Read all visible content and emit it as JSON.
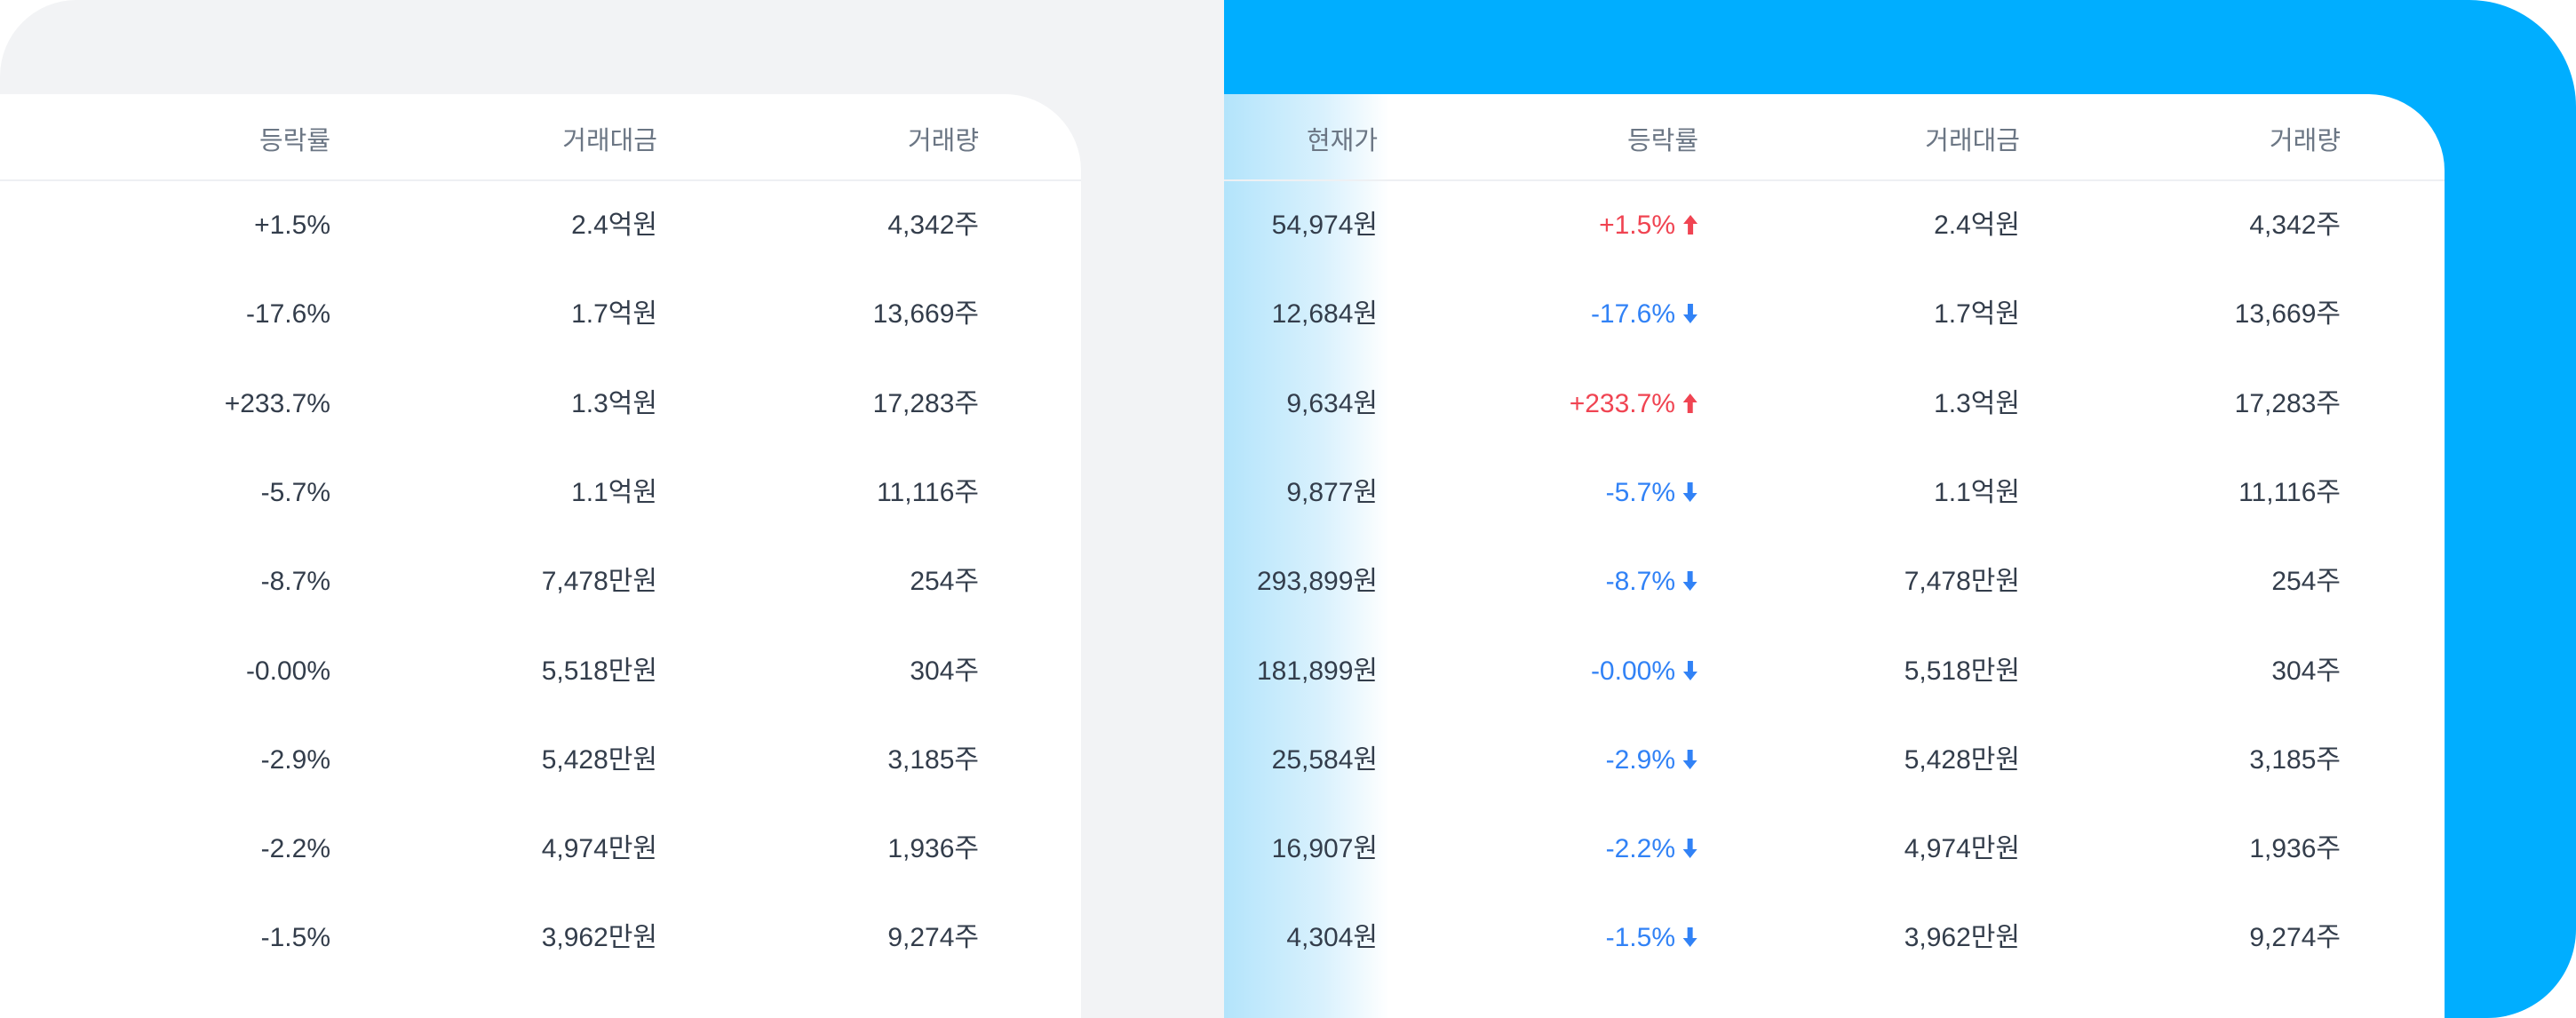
{
  "left_table": {
    "headers": [
      "등락률",
      "거래대금",
      "거래량"
    ],
    "rows": [
      [
        "+1.5%",
        "2.4억원",
        "4,342주"
      ],
      [
        "-17.6%",
        "1.7억원",
        "13,669주"
      ],
      [
        "+233.7%",
        "1.3억원",
        "17,283주"
      ],
      [
        "-5.7%",
        "1.1억원",
        "11,116주"
      ],
      [
        "-8.7%",
        "7,478만원",
        "254주"
      ],
      [
        "-0.00%",
        "5,518만원",
        "304주"
      ],
      [
        "-2.9%",
        "5,428만원",
        "3,185주"
      ],
      [
        "-2.2%",
        "4,974만원",
        "1,936주"
      ],
      [
        "-1.5%",
        "3,962만원",
        "9,274주"
      ]
    ]
  },
  "right_table": {
    "headers": [
      "현재가",
      "등락률",
      "거래대금",
      "거래량"
    ],
    "rows": [
      {
        "price": "54,974원",
        "change": "+1.5%",
        "direction": "up",
        "amount": "2.4억원",
        "volume": "4,342주"
      },
      {
        "price": "12,684원",
        "change": "-17.6%",
        "direction": "down",
        "amount": "1.7억원",
        "volume": "13,669주"
      },
      {
        "price": "9,634원",
        "change": "+233.7%",
        "direction": "up",
        "amount": "1.3억원",
        "volume": "17,283주"
      },
      {
        "price": "9,877원",
        "change": "-5.7%",
        "direction": "down",
        "amount": "1.1억원",
        "volume": "11,116주"
      },
      {
        "price": "293,899원",
        "change": "-8.7%",
        "direction": "down",
        "amount": "7,478만원",
        "volume": "254주"
      },
      {
        "price": "181,899원",
        "change": "-0.00%",
        "direction": "down",
        "amount": "5,518만원",
        "volume": "304주"
      },
      {
        "price": "25,584원",
        "change": "-2.9%",
        "direction": "down",
        "amount": "5,428만원",
        "volume": "3,185주"
      },
      {
        "price": "16,907원",
        "change": "-2.2%",
        "direction": "down",
        "amount": "4,974만원",
        "volume": "1,936주"
      },
      {
        "price": "4,304원",
        "change": "-1.5%",
        "direction": "down",
        "amount": "3,962만원",
        "volume": "9,274주"
      }
    ]
  },
  "colors": {
    "up": "#f04452",
    "down": "#3182f6",
    "accent_blue": "#00aeff",
    "left_background": "#f2f3f5",
    "header_text": "#6b7684",
    "body_text": "#333d4b"
  },
  "icons": {
    "up": "arrow-up-icon",
    "down": "arrow-down-icon"
  }
}
